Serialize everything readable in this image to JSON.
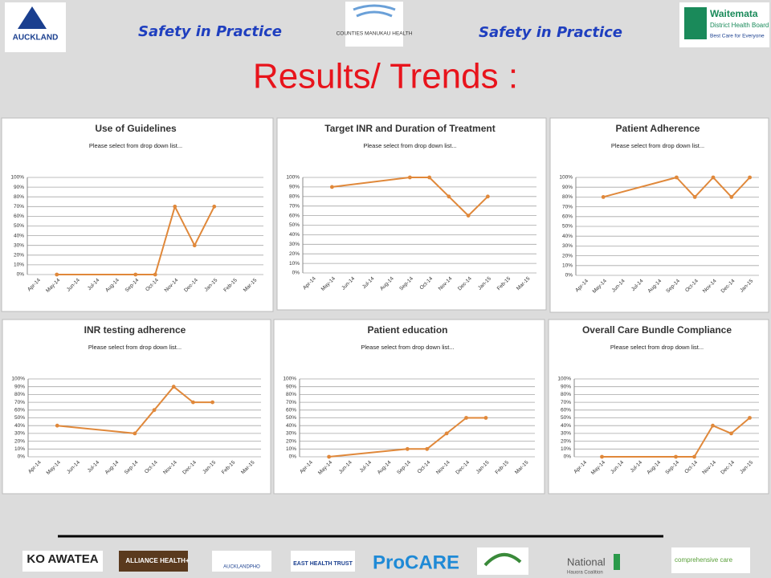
{
  "header": {
    "left_tagline": "Safety in Practice",
    "right_tagline": "Safety in Practice",
    "title": "Results/ Trends :",
    "logos": [
      "AUCKLAND",
      "COUNTIES MANUKAU HEALTH",
      "Waitemata",
      "District Health Board",
      "Best Care for Everyone"
    ]
  },
  "footer": {
    "logos": [
      "KO AWATEA",
      "ALLIANCE HEALTH+",
      "AUCKLANDPHO",
      "EAST HEALTH TRUST",
      "ProCARE",
      "National",
      "Hauora Coalition",
      "comprehensive care"
    ]
  },
  "chart_data": [
    {
      "type": "line",
      "title": "Use of Guidelines",
      "subtitle": "Please select from drop down list...",
      "categories": [
        "Apr-14",
        "May-14",
        "Jun-14",
        "Jul-14",
        "Aug-14",
        "Sep-14",
        "Oct-14",
        "Nov-14",
        "Dec-14",
        "Jan-15",
        "Feb-15",
        "Mar-15"
      ],
      "values": [
        null,
        0,
        null,
        null,
        null,
        0,
        0,
        70,
        30,
        70,
        null,
        null
      ],
      "color": "#e0883a",
      "ylim": [
        0,
        100
      ],
      "yticks": [
        {
          "value": 0,
          "label": "0%"
        },
        {
          "value": 10,
          "label": "10%"
        },
        {
          "value": 20,
          "label": "20%"
        },
        {
          "value": 30,
          "label": "30%"
        },
        {
          "value": 40,
          "label": "40%"
        },
        {
          "value": 50,
          "label": "50%"
        },
        {
          "value": 60,
          "label": "60%"
        },
        {
          "value": 70,
          "label": "70%"
        },
        {
          "value": 80,
          "label": "80%"
        },
        {
          "value": 90,
          "label": "90%"
        },
        {
          "value": 100,
          "label": "100%"
        }
      ],
      "grid": true,
      "connect_gaps": true
    },
    {
      "type": "line",
      "title": "Target INR and Duration of Treatment",
      "subtitle": "Please select from drop down list...",
      "categories": [
        "Apr-14",
        "May-14",
        "Jun-14",
        "Jul-14",
        "Aug-14",
        "Sep-14",
        "Oct-14",
        "Nov-14",
        "Dec-14",
        "Jan-15",
        "Feb-15",
        "Mar-15"
      ],
      "values": [
        null,
        90,
        null,
        null,
        null,
        100,
        100,
        80,
        60,
        80,
        null,
        null
      ],
      "color": "#e0883a",
      "ylim": [
        0,
        100
      ],
      "yticks": [
        {
          "value": 0,
          "label": "0%"
        },
        {
          "value": 10,
          "label": "10%"
        },
        {
          "value": 20,
          "label": "20%"
        },
        {
          "value": 30,
          "label": "30%"
        },
        {
          "value": 40,
          "label": "40%"
        },
        {
          "value": 50,
          "label": "50%"
        },
        {
          "value": 60,
          "label": "60%"
        },
        {
          "value": 70,
          "label": "70%"
        },
        {
          "value": 80,
          "label": "80%"
        },
        {
          "value": 90,
          "label": "90%"
        },
        {
          "value": 100,
          "label": "100%"
        }
      ],
      "grid": true,
      "connect_gaps": true
    },
    {
      "type": "line",
      "title": "Patient Adherence",
      "subtitle": "Please select from drop down list...",
      "categories": [
        "Apr-14",
        "May-14",
        "Jun-14",
        "Jul-14",
        "Aug-14",
        "Sep-14",
        "Oct-14",
        "Nov-14",
        "Dec-14",
        "Jan-15"
      ],
      "values": [
        null,
        80,
        null,
        null,
        null,
        100,
        80,
        100,
        80,
        100
      ],
      "color": "#e0883a",
      "ylim": [
        0,
        100
      ],
      "yticks": [
        {
          "value": 0,
          "label": "0%"
        },
        {
          "value": 10,
          "label": "10%"
        },
        {
          "value": 20,
          "label": "20%"
        },
        {
          "value": 30,
          "label": "30%"
        },
        {
          "value": 40,
          "label": "40%"
        },
        {
          "value": 50,
          "label": "50%"
        },
        {
          "value": 60,
          "label": "60%"
        },
        {
          "value": 70,
          "label": "70%"
        },
        {
          "value": 80,
          "label": "80%"
        },
        {
          "value": 90,
          "label": "90%"
        },
        {
          "value": 100,
          "label": "100%"
        }
      ],
      "grid": true,
      "connect_gaps": true
    },
    {
      "type": "line",
      "title": "INR testing adherence",
      "subtitle": "Please select from drop down list...",
      "categories": [
        "Apr-14",
        "May-14",
        "Jun-14",
        "Jul-14",
        "Aug-14",
        "Sep-14",
        "Oct-14",
        "Nov-14",
        "Dec-14",
        "Jan-15",
        "Feb-15",
        "Mar-15"
      ],
      "values": [
        null,
        40,
        null,
        null,
        null,
        30,
        60,
        90,
        70,
        70,
        null,
        null
      ],
      "color": "#e0883a",
      "ylim": [
        0,
        100
      ],
      "yticks": [
        {
          "value": 0,
          "label": "0%"
        },
        {
          "value": 10,
          "label": "10%"
        },
        {
          "value": 20,
          "label": "20%"
        },
        {
          "value": 30,
          "label": "30%"
        },
        {
          "value": 40,
          "label": "40%"
        },
        {
          "value": 50,
          "label": "50%"
        },
        {
          "value": 60,
          "label": "60%"
        },
        {
          "value": 70,
          "label": "70%"
        },
        {
          "value": 80,
          "label": "80%"
        },
        {
          "value": 90,
          "label": "90%"
        },
        {
          "value": 100,
          "label": "100%"
        }
      ],
      "grid": true,
      "connect_gaps": true
    },
    {
      "type": "line",
      "title": "Patient education",
      "subtitle": "Please select from drop down list...",
      "categories": [
        "Apr-14",
        "May-14",
        "Jun-14",
        "Jul-14",
        "Aug-14",
        "Sep-14",
        "Oct-14",
        "Nov-14",
        "Dec-14",
        "Jan-15",
        "Feb-15",
        "Mar-15"
      ],
      "values": [
        null,
        0,
        null,
        null,
        null,
        10,
        10,
        30,
        50,
        50,
        null,
        null
      ],
      "color": "#e0883a",
      "ylim": [
        0,
        100
      ],
      "yticks": [
        {
          "value": 0,
          "label": "0%"
        },
        {
          "value": 10,
          "label": "10%"
        },
        {
          "value": 20,
          "label": "20%"
        },
        {
          "value": 30,
          "label": "30%"
        },
        {
          "value": 40,
          "label": "40%"
        },
        {
          "value": 50,
          "label": "50%"
        },
        {
          "value": 60,
          "label": "60%"
        },
        {
          "value": 70,
          "label": "70%"
        },
        {
          "value": 80,
          "label": "80%"
        },
        {
          "value": 90,
          "label": "90%"
        },
        {
          "value": 100,
          "label": "100%"
        }
      ],
      "grid": true,
      "connect_gaps": true
    },
    {
      "type": "line",
      "title": "Overall Care Bundle Compliance",
      "subtitle": "Please select from drop down list...",
      "categories": [
        "Apr-14",
        "May-14",
        "Jun-14",
        "Jul-14",
        "Aug-14",
        "Sep-14",
        "Oct-14",
        "Nov-14",
        "Dec-14",
        "Jan-15"
      ],
      "values": [
        null,
        0,
        null,
        null,
        null,
        0,
        0,
        40,
        30,
        50
      ],
      "color": "#e0883a",
      "ylim": [
        0,
        100
      ],
      "yticks": [
        {
          "value": 0,
          "label": "0%"
        },
        {
          "value": 10,
          "label": "10%"
        },
        {
          "value": 20,
          "label": "20%"
        },
        {
          "value": 30,
          "label": "30%"
        },
        {
          "value": 40,
          "label": "40%"
        },
        {
          "value": 50,
          "label": "50%"
        },
        {
          "value": 60,
          "label": "60%"
        },
        {
          "value": 70,
          "label": "70%"
        },
        {
          "value": 80,
          "label": "80%"
        },
        {
          "value": 90,
          "label": "90%"
        },
        {
          "value": 100,
          "label": "100%"
        }
      ],
      "grid": true,
      "connect_gaps": true
    }
  ]
}
